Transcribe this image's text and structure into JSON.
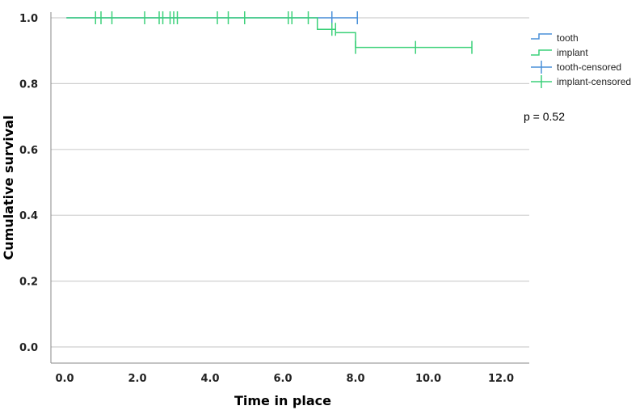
{
  "chart_data": {
    "type": "line",
    "title": "",
    "xlabel": "Time in place",
    "ylabel": "Cumulative survival",
    "xlim": [
      0,
      13
    ],
    "ylim": [
      0,
      1.0
    ],
    "xticks": [
      "0.0",
      "2.0",
      "4.0",
      "6.0",
      "8.0",
      "10.0",
      "12.0"
    ],
    "xtick_values": [
      0,
      2,
      4,
      6,
      8,
      10,
      12
    ],
    "yticks": [
      "0.0",
      "0.2",
      "0.4",
      "0.6",
      "0.8",
      "1.0"
    ],
    "ytick_values": [
      0,
      0.2,
      0.4,
      0.6,
      0.8,
      1.0
    ],
    "grid": "horizontal",
    "legend_position": "right",
    "annotation": "p = 0.52",
    "series": [
      {
        "name": "tooth",
        "color": "#4a90d9",
        "step": [
          [
            0.05,
            1.0
          ],
          [
            8.05,
            1.0
          ]
        ],
        "censored": [
          [
            7.35,
            1.0
          ],
          [
            8.05,
            1.0
          ]
        ]
      },
      {
        "name": "implant",
        "color": "#3cd17a",
        "step": [
          [
            0.05,
            1.0
          ],
          [
            6.95,
            1.0
          ],
          [
            6.95,
            0.965
          ],
          [
            7.45,
            0.965
          ],
          [
            7.45,
            0.955
          ],
          [
            8.0,
            0.955
          ],
          [
            8.0,
            0.91
          ],
          [
            11.2,
            0.91
          ]
        ],
        "censored": [
          [
            0.85,
            1.0
          ],
          [
            1.0,
            1.0
          ],
          [
            1.3,
            1.0
          ],
          [
            2.2,
            1.0
          ],
          [
            2.6,
            1.0
          ],
          [
            2.7,
            1.0
          ],
          [
            2.9,
            1.0
          ],
          [
            3.0,
            1.0
          ],
          [
            3.1,
            1.0
          ],
          [
            4.2,
            1.0
          ],
          [
            4.5,
            1.0
          ],
          [
            4.95,
            1.0
          ],
          [
            6.15,
            1.0
          ],
          [
            6.25,
            1.0
          ],
          [
            6.7,
            1.0
          ],
          [
            7.35,
            0.965
          ],
          [
            7.45,
            0.965
          ],
          [
            8.0,
            0.91
          ],
          [
            9.65,
            0.91
          ],
          [
            11.2,
            0.91
          ]
        ]
      }
    ],
    "legend": [
      "tooth",
      "implant",
      "tooth-censored",
      "implant-censored"
    ]
  }
}
